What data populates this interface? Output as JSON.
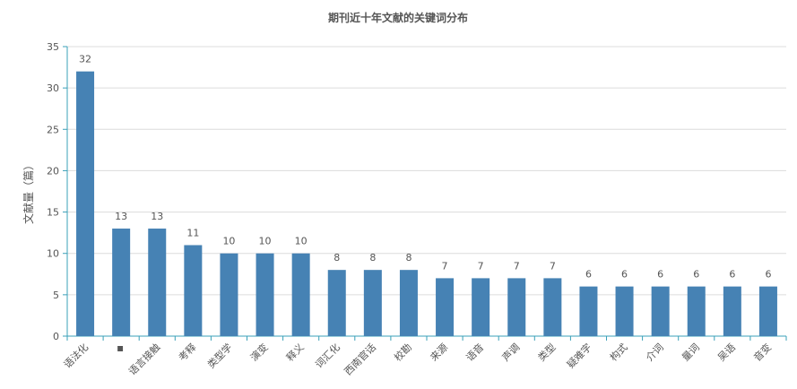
{
  "chart_data": {
    "type": "bar",
    "title": "期刊近十年文献的关键词分布",
    "xlabel": "",
    "ylabel": "文献量（篇）",
    "ylim": [
      0,
      35
    ],
    "yticks": [
      0,
      5,
      10,
      15,
      20,
      25,
      30,
      35
    ],
    "grid": true,
    "legend": "none",
    "bar_color": "#4682b4",
    "categories": [
      "语法化",
      "◆",
      "语言接触",
      "考释",
      "类型学",
      "演变",
      "释义",
      "词汇化",
      "西南官话",
      "校勘",
      "来源",
      "语音",
      "声调",
      "类型",
      "疑难字",
      "构式",
      "介词",
      "量词",
      "吴语",
      "音变"
    ],
    "values": [
      32,
      13,
      13,
      11,
      10,
      10,
      10,
      8,
      8,
      8,
      7,
      7,
      7,
      7,
      6,
      6,
      6,
      6,
      6,
      6
    ]
  }
}
